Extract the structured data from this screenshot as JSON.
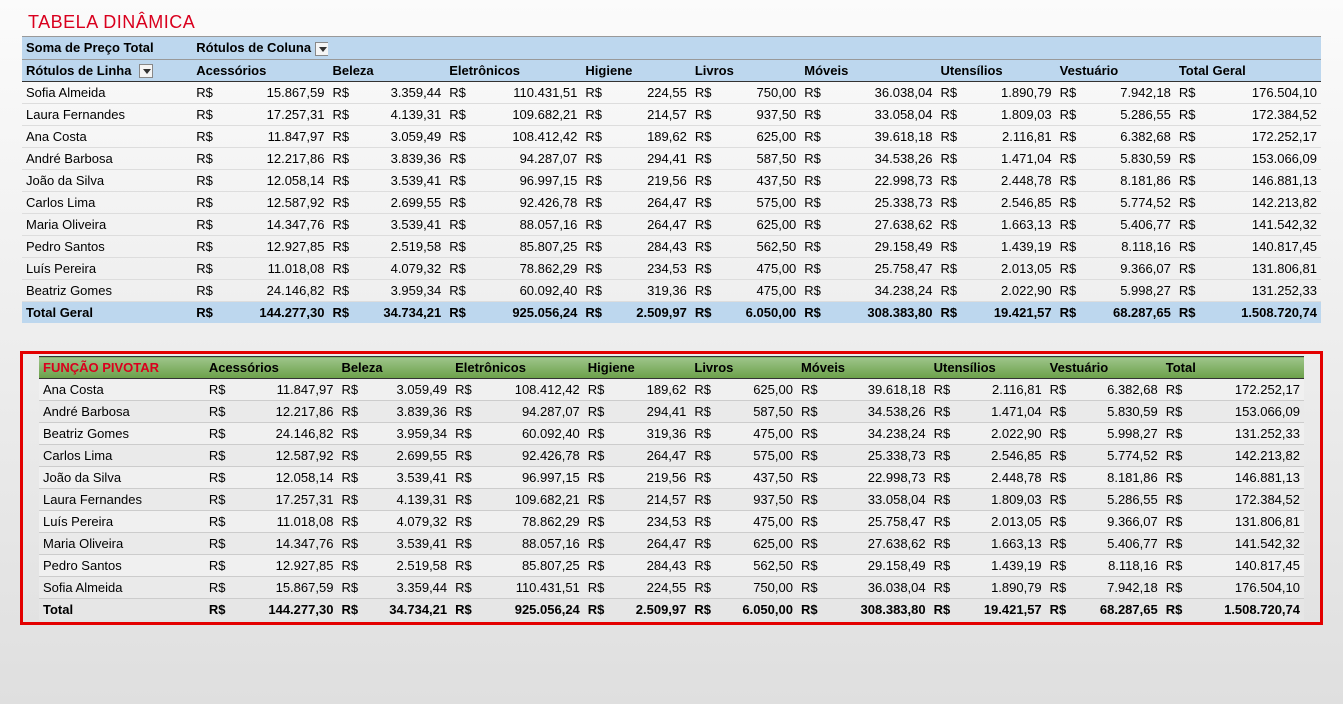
{
  "title1": "TABELA DINÂMICA",
  "funcao": "FUNÇÃO PIVOTAR",
  "pt": {
    "h1a": "Soma de Preço Total",
    "h1b": "Rótulos de Coluna",
    "h2a": "Rótulos de Linha",
    "grand": "Total Geral"
  },
  "rs": "R$",
  "columns": [
    "Acessórios",
    "Beleza",
    "Eletrônicos",
    "Higiene",
    "Livros",
    "Móveis",
    "Utensílios",
    "Vestuário"
  ],
  "totalLabel": "Total",
  "ptRows": [
    {
      "name": "Sofia Almeida",
      "v": [
        "15.867,59",
        "3.359,44",
        "110.431,51",
        "224,55",
        "750,00",
        "36.038,04",
        "1.890,79",
        "7.942,18",
        "176.504,10"
      ]
    },
    {
      "name": "Laura Fernandes",
      "v": [
        "17.257,31",
        "4.139,31",
        "109.682,21",
        "214,57",
        "937,50",
        "33.058,04",
        "1.809,03",
        "5.286,55",
        "172.384,52"
      ]
    },
    {
      "name": "Ana Costa",
      "v": [
        "11.847,97",
        "3.059,49",
        "108.412,42",
        "189,62",
        "625,00",
        "39.618,18",
        "2.116,81",
        "6.382,68",
        "172.252,17"
      ]
    },
    {
      "name": "André Barbosa",
      "v": [
        "12.217,86",
        "3.839,36",
        "94.287,07",
        "294,41",
        "587,50",
        "34.538,26",
        "1.471,04",
        "5.830,59",
        "153.066,09"
      ]
    },
    {
      "name": "João da Silva",
      "v": [
        "12.058,14",
        "3.539,41",
        "96.997,15",
        "219,56",
        "437,50",
        "22.998,73",
        "2.448,78",
        "8.181,86",
        "146.881,13"
      ]
    },
    {
      "name": "Carlos Lima",
      "v": [
        "12.587,92",
        "2.699,55",
        "92.426,78",
        "264,47",
        "575,00",
        "25.338,73",
        "2.546,85",
        "5.774,52",
        "142.213,82"
      ]
    },
    {
      "name": "Maria Oliveira",
      "v": [
        "14.347,76",
        "3.539,41",
        "88.057,16",
        "264,47",
        "625,00",
        "27.638,62",
        "1.663,13",
        "5.406,77",
        "141.542,32"
      ]
    },
    {
      "name": "Pedro Santos",
      "v": [
        "12.927,85",
        "2.519,58",
        "85.807,25",
        "284,43",
        "562,50",
        "29.158,49",
        "1.439,19",
        "8.118,16",
        "140.817,45"
      ]
    },
    {
      "name": "Luís Pereira",
      "v": [
        "11.018,08",
        "4.079,32",
        "78.862,29",
        "234,53",
        "475,00",
        "25.758,47",
        "2.013,05",
        "9.366,07",
        "131.806,81"
      ]
    },
    {
      "name": "Beatriz Gomes",
      "v": [
        "24.146,82",
        "3.959,34",
        "60.092,40",
        "319,36",
        "475,00",
        "34.238,24",
        "2.022,90",
        "5.998,27",
        "131.252,33"
      ]
    }
  ],
  "ptTotal": [
    "144.277,30",
    "34.734,21",
    "925.056,24",
    "2.509,97",
    "6.050,00",
    "308.383,80",
    "19.421,57",
    "68.287,65",
    "1.508.720,74"
  ],
  "t2Rows": [
    {
      "name": "Ana Costa",
      "v": [
        "11.847,97",
        "3.059,49",
        "108.412,42",
        "189,62",
        "625,00",
        "39.618,18",
        "2.116,81",
        "6.382,68",
        "172.252,17"
      ]
    },
    {
      "name": "André Barbosa",
      "v": [
        "12.217,86",
        "3.839,36",
        "94.287,07",
        "294,41",
        "587,50",
        "34.538,26",
        "1.471,04",
        "5.830,59",
        "153.066,09"
      ]
    },
    {
      "name": "Beatriz Gomes",
      "v": [
        "24.146,82",
        "3.959,34",
        "60.092,40",
        "319,36",
        "475,00",
        "34.238,24",
        "2.022,90",
        "5.998,27",
        "131.252,33"
      ]
    },
    {
      "name": "Carlos Lima",
      "v": [
        "12.587,92",
        "2.699,55",
        "92.426,78",
        "264,47",
        "575,00",
        "25.338,73",
        "2.546,85",
        "5.774,52",
        "142.213,82"
      ]
    },
    {
      "name": "João da Silva",
      "v": [
        "12.058,14",
        "3.539,41",
        "96.997,15",
        "219,56",
        "437,50",
        "22.998,73",
        "2.448,78",
        "8.181,86",
        "146.881,13"
      ]
    },
    {
      "name": "Laura Fernandes",
      "v": [
        "17.257,31",
        "4.139,31",
        "109.682,21",
        "214,57",
        "937,50",
        "33.058,04",
        "1.809,03",
        "5.286,55",
        "172.384,52"
      ]
    },
    {
      "name": "Luís Pereira",
      "v": [
        "11.018,08",
        "4.079,32",
        "78.862,29",
        "234,53",
        "475,00",
        "25.758,47",
        "2.013,05",
        "9.366,07",
        "131.806,81"
      ]
    },
    {
      "name": "Maria Oliveira",
      "v": [
        "14.347,76",
        "3.539,41",
        "88.057,16",
        "264,47",
        "625,00",
        "27.638,62",
        "1.663,13",
        "5.406,77",
        "141.542,32"
      ]
    },
    {
      "name": "Pedro Santos",
      "v": [
        "12.927,85",
        "2.519,58",
        "85.807,25",
        "284,43",
        "562,50",
        "29.158,49",
        "1.439,19",
        "8.118,16",
        "140.817,45"
      ]
    },
    {
      "name": "Sofia Almeida",
      "v": [
        "15.867,59",
        "3.359,44",
        "110.431,51",
        "224,55",
        "750,00",
        "36.038,04",
        "1.890,79",
        "7.942,18",
        "176.504,10"
      ]
    }
  ],
  "t2Total": [
    "144.277,30",
    "34.734,21",
    "925.056,24",
    "2.509,97",
    "6.050,00",
    "308.383,80",
    "19.421,57",
    "68.287,65",
    "1.508.720,74"
  ]
}
